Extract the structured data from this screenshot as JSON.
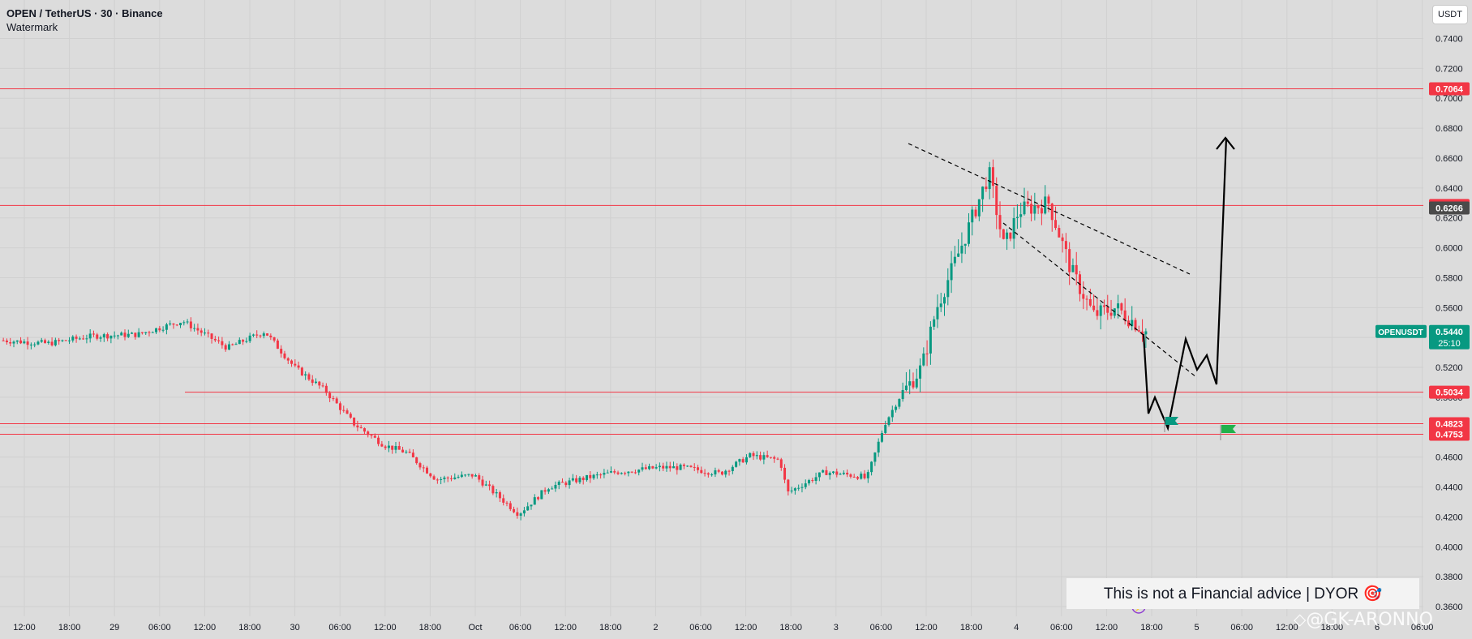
{
  "header": {
    "symbol": "OPEN / TetherUS · 30 · Binance",
    "subtitle": "Watermark"
  },
  "currency_button": "USDT",
  "disclaimer": "This is not a Financial advice | DYOR 🎯",
  "brand_watermark": "⬦@GK-ARONNO",
  "colors": {
    "up": "#089981",
    "down": "#f23645",
    "level_line": "#f23645",
    "background": "#dcdcdc",
    "grid": "#d0d0d0",
    "drawing": "#000000"
  },
  "chart_data": {
    "type": "candlestick",
    "ylim": [
      0.36,
      0.76
    ],
    "yticks": [
      "0.3600",
      "0.3800",
      "0.4000",
      "0.4200",
      "0.4400",
      "0.4600",
      "0.4800",
      "0.5000",
      "0.5200",
      "0.5400",
      "0.5600",
      "0.5800",
      "0.6000",
      "0.6200",
      "0.6400",
      "0.6600",
      "0.6800",
      "0.7000",
      "0.7200",
      "0.7400"
    ],
    "xticks": [
      "12:00",
      "18:00",
      "29",
      "06:00",
      "12:00",
      "18:00",
      "30",
      "06:00",
      "12:00",
      "18:00",
      "Oct",
      "06:00",
      "12:00",
      "18:00",
      "2",
      "06:00",
      "12:00",
      "18:00",
      "3",
      "06:00",
      "12:00",
      "18:00",
      "4",
      "06:00",
      "12:00",
      "18:00",
      "5",
      "06:00",
      "12:00",
      "18:00",
      "6",
      "06:00"
    ],
    "horizontal_levels": [
      {
        "value": 0.7064,
        "label": "0.7064"
      },
      {
        "value": 0.6283,
        "label": "0.6283"
      },
      {
        "value": 0.5034,
        "label": "0.5034"
      },
      {
        "value": 0.4823,
        "label": "0.4823"
      },
      {
        "value": 0.4753,
        "label": "0.4753"
      }
    ],
    "price_tags": [
      {
        "label": "0.6266",
        "value": 0.6266,
        "kind": "crosshair"
      }
    ],
    "last_price": {
      "symbol": "OPENUSDT",
      "value": "0.5440",
      "countdown": "25:10"
    },
    "candle_path": [
      [
        0,
        0.538
      ],
      [
        0.03,
        0.536
      ],
      [
        0.06,
        0.541
      ],
      [
        0.09,
        0.542
      ],
      [
        0.12,
        0.551
      ],
      [
        0.15,
        0.533
      ],
      [
        0.175,
        0.544
      ],
      [
        0.195,
        0.52
      ],
      [
        0.215,
        0.505
      ],
      [
        0.235,
        0.482
      ],
      [
        0.255,
        0.468
      ],
      [
        0.27,
        0.463
      ],
      [
        0.29,
        0.445
      ],
      [
        0.315,
        0.448
      ],
      [
        0.345,
        0.422
      ],
      [
        0.365,
        0.44
      ],
      [
        0.39,
        0.446
      ],
      [
        0.41,
        0.45
      ],
      [
        0.44,
        0.453
      ],
      [
        0.455,
        0.453
      ],
      [
        0.48,
        0.449
      ],
      [
        0.5,
        0.461
      ],
      [
        0.52,
        0.458
      ],
      [
        0.525,
        0.436
      ],
      [
        0.55,
        0.45
      ],
      [
        0.575,
        0.447
      ],
      [
        0.578,
        0.445
      ],
      [
        0.59,
        0.482
      ],
      [
        0.6,
        0.5
      ],
      [
        0.615,
        0.52
      ],
      [
        0.625,
        0.56
      ],
      [
        0.645,
        0.61
      ],
      [
        0.66,
        0.65
      ],
      [
        0.67,
        0.6
      ],
      [
        0.68,
        0.625
      ],
      [
        0.7,
        0.63
      ],
      [
        0.715,
        0.585
      ],
      [
        0.73,
        0.555
      ],
      [
        0.745,
        0.56
      ],
      [
        0.765,
        0.544
      ]
    ]
  }
}
